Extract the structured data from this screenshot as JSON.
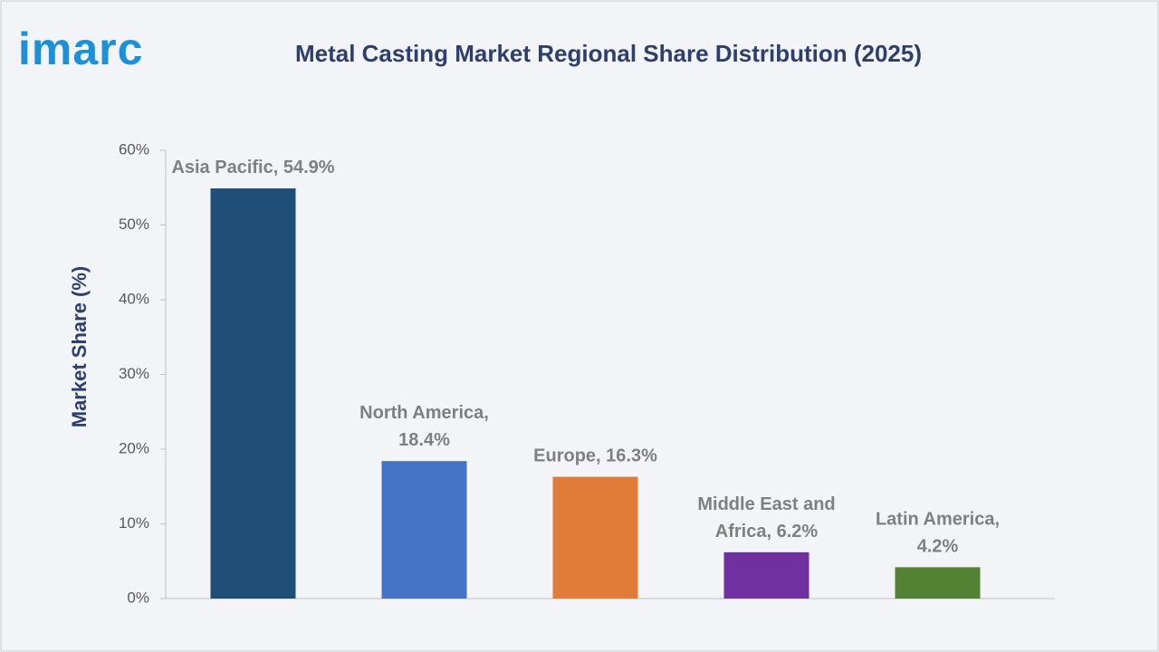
{
  "brand": "imarc",
  "chart_data": {
    "type": "bar",
    "title": "Metal Casting Market Regional Share Distribution (2025)",
    "ylabel": "Market Share (%)",
    "values": [
      54.9,
      18.4,
      16.3,
      6.2,
      4.2
    ],
    "value_labels": [
      [
        "Asia Pacific, 54.9%"
      ],
      [
        "North America,",
        "18.4%"
      ],
      [
        "Europe, 16.3%"
      ],
      [
        "Middle East and",
        "Africa, 6.2%"
      ],
      [
        "Latin America,",
        "4.2%"
      ]
    ],
    "colors": [
      "#1f4e79",
      "#4472c4",
      "#e07b39",
      "#7030a0",
      "#548235"
    ],
    "ylim": [
      0,
      60
    ],
    "yticks": [
      {
        "value": 0,
        "label": "0%"
      },
      {
        "value": 10,
        "label": "10%"
      },
      {
        "value": 20,
        "label": "20%"
      },
      {
        "value": 30,
        "label": "30%"
      },
      {
        "value": 40,
        "label": "40%"
      },
      {
        "value": 50,
        "label": "50%"
      },
      {
        "value": 60,
        "label": "60%"
      }
    ],
    "grid": false
  }
}
